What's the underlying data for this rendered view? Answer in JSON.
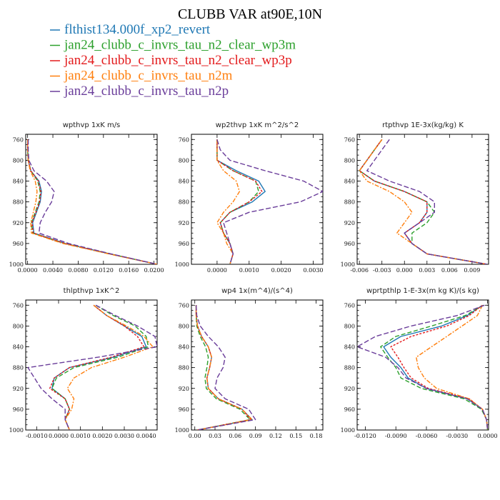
{
  "figure": {
    "title": "CLUBB VAR at90E,10N"
  },
  "legend": [
    {
      "label": "flthist134.000f_xp2_revert",
      "color": "#1f78b4",
      "dash": ""
    },
    {
      "label": "jan24_clubb_c_invrs_tau_n2_clear_wp3m",
      "color": "#2ca02c",
      "dash": "6,3"
    },
    {
      "label": "jan24_clubb_c_invrs_tau_n2_clear_wp3p",
      "color": "#e31a1c",
      "dash": "3,2"
    },
    {
      "label": "jan24_clubb_c_invrs_tau_n2m",
      "color": "#ff7f0e",
      "dash": "6,2,2,2"
    },
    {
      "label": "jan24_clubb_c_invrs_tau_n2p",
      "color": "#6a3d9a",
      "dash": "7,3"
    }
  ],
  "chart_data": [
    {
      "type": "line",
      "title": "wpthvp  1xK m/s",
      "xlim": [
        -0.0003,
        0.0205
      ],
      "ylim": [
        1000,
        750
      ],
      "xticks": [
        "0.0000",
        "0.0040",
        "0.0080",
        "0.0120",
        "0.0160",
        "0.0200"
      ],
      "xtick_values": [
        0,
        0.004,
        0.008,
        0.012,
        0.016,
        0.02
      ],
      "yticks": [
        760,
        800,
        840,
        880,
        920,
        960,
        1000
      ],
      "y": [
        760,
        780,
        800,
        820,
        840,
        860,
        880,
        900,
        920,
        940,
        960,
        980,
        1000
      ],
      "series": [
        {
          "values": [
            0.0,
            0.0,
            0.0001,
            0.0005,
            0.0018,
            0.0022,
            0.002,
            0.0014,
            0.0008,
            0.001,
            0.006,
            0.013,
            0.0205
          ]
        },
        {
          "values": [
            0.0,
            0.0,
            0.0001,
            0.0005,
            0.0016,
            0.002,
            0.0018,
            0.0012,
            0.0006,
            0.0008,
            0.0058,
            0.013,
            0.0205
          ]
        },
        {
          "values": [
            0.0,
            0.0,
            0.0001,
            0.0005,
            0.0017,
            0.0021,
            0.0019,
            0.0013,
            0.0007,
            0.0009,
            0.0059,
            0.013,
            0.0205
          ]
        },
        {
          "values": [
            0.0,
            0.0,
            0.0001,
            0.0004,
            0.0012,
            0.0015,
            0.0013,
            0.0009,
            0.0005,
            0.0006,
            0.0056,
            0.0128,
            0.0205
          ]
        },
        {
          "values": [
            0.0001,
            0.0001,
            0.0002,
            0.001,
            0.003,
            0.0042,
            0.0038,
            0.0028,
            0.002,
            0.0018,
            0.0065,
            0.0132,
            0.0205
          ]
        }
      ]
    },
    {
      "type": "line",
      "title": "wp2thvp  1xK m^2/s^2",
      "xlim": [
        -0.0008,
        0.0033
      ],
      "ylim": [
        1000,
        750
      ],
      "xticks": [
        "0.0000",
        "0.0010",
        "0.0020",
        "0.0030"
      ],
      "xtick_values": [
        0,
        0.001,
        0.002,
        0.003
      ],
      "yticks": [
        760,
        800,
        840,
        880,
        920,
        960,
        1000
      ],
      "y": [
        760,
        780,
        800,
        820,
        840,
        860,
        880,
        900,
        920,
        940,
        960,
        980,
        1000
      ],
      "series": [
        {
          "values": [
            0.0,
            0.0,
            0.0,
            0.0006,
            0.0013,
            0.0015,
            0.0011,
            0.0004,
            0.0001,
            0.0002,
            0.0004,
            0.0005,
            0.0004
          ]
        },
        {
          "values": [
            0.0,
            0.0,
            0.0,
            0.0005,
            0.0012,
            0.0013,
            0.001,
            0.0004,
            0.0001,
            0.0002,
            0.0004,
            0.0005,
            0.0004
          ]
        },
        {
          "values": [
            0.0,
            0.0,
            0.0,
            0.0005,
            0.0012,
            0.0014,
            0.001,
            0.0004,
            0.0001,
            0.0002,
            0.0004,
            0.0005,
            0.0004
          ]
        },
        {
          "values": [
            0.0,
            0.0,
            0.0,
            0.0002,
            0.0006,
            0.0007,
            0.0005,
            0.0002,
            0.0,
            0.0002,
            0.0003,
            0.0005,
            0.0004
          ]
        },
        {
          "values": [
            0.0,
            0.0001,
            0.0004,
            0.0015,
            0.0027,
            0.0033,
            0.0026,
            0.001,
            0.0002,
            0.0003,
            0.0004,
            0.0005,
            0.0004
          ]
        }
      ]
    },
    {
      "type": "line",
      "title": "rtpthvp  1E-3x(kg/kg) K",
      "xlim": [
        -0.0063,
        0.0112
      ],
      "ylim": [
        1000,
        750
      ],
      "xticks": [
        "-0.006",
        "-0.003",
        "0.000",
        "0.003",
        "0.006",
        "0.009"
      ],
      "xtick_values": [
        -0.006,
        -0.003,
        0,
        0.003,
        0.006,
        0.009
      ],
      "yticks": [
        760,
        800,
        840,
        880,
        920,
        960,
        1000
      ],
      "y": [
        760,
        780,
        800,
        820,
        840,
        860,
        880,
        900,
        920,
        940,
        960,
        980,
        1000
      ],
      "series": [
        {
          "values": [
            -0.003,
            -0.004,
            -0.005,
            -0.006,
            -0.004,
            0.0,
            0.003,
            0.003,
            0.002,
            0.0,
            0.001,
            0.003,
            0.011
          ]
        },
        {
          "values": [
            -0.003,
            -0.004,
            -0.005,
            -0.006,
            -0.004,
            0.0,
            0.003,
            0.004,
            0.003,
            0.001,
            0.001,
            0.003,
            0.011
          ]
        },
        {
          "values": [
            -0.003,
            -0.004,
            -0.005,
            -0.006,
            -0.004,
            0.0,
            0.003,
            0.003,
            0.002,
            0.0,
            0.001,
            0.003,
            0.011
          ]
        },
        {
          "values": [
            -0.003,
            -0.004,
            -0.005,
            -0.006,
            -0.005,
            -0.002,
            0.0,
            0.001,
            0.0,
            -0.001,
            0.001,
            0.003,
            0.011
          ]
        },
        {
          "values": [
            -0.002,
            -0.003,
            -0.004,
            -0.005,
            -0.002,
            0.002,
            0.004,
            0.004,
            0.002,
            0.0,
            0.001,
            0.003,
            0.011
          ]
        }
      ]
    },
    {
      "type": "line",
      "title": "thlpthvp  1xK^2",
      "xlim": [
        -0.0015,
        0.0045
      ],
      "ylim": [
        1000,
        750
      ],
      "xticks": [
        "-0.0010",
        "0.0000",
        "0.0010",
        "0.0020",
        "0.0030",
        "0.0040"
      ],
      "xtick_values": [
        -0.001,
        0,
        0.001,
        0.002,
        0.003,
        0.004
      ],
      "yticks": [
        760,
        800,
        840,
        880,
        920,
        960,
        1000
      ],
      "y": [
        760,
        780,
        800,
        820,
        840,
        860,
        880,
        900,
        920,
        940,
        960,
        980,
        1000
      ],
      "series": [
        {
          "values": [
            0.0016,
            0.0022,
            0.003,
            0.0038,
            0.004,
            0.0025,
            0.0005,
            -0.0002,
            -0.0003,
            0.0003,
            0.0005,
            0.0003,
            0.0005
          ]
        },
        {
          "values": [
            0.0017,
            0.0025,
            0.0035,
            0.004,
            0.0041,
            0.0027,
            0.0007,
            -0.0001,
            -0.0003,
            0.0003,
            0.0005,
            0.0003,
            0.0005
          ]
        },
        {
          "values": [
            0.0016,
            0.0022,
            0.003,
            0.0036,
            0.0039,
            0.0024,
            0.0005,
            -0.0002,
            -0.0004,
            0.0003,
            0.0005,
            0.0003,
            0.0005
          ]
        },
        {
          "values": [
            0.0016,
            0.0022,
            0.0031,
            0.0039,
            0.0043,
            0.003,
            0.0015,
            0.0007,
            0.0004,
            0.0007,
            0.0006,
            0.0003,
            0.0005
          ]
        },
        {
          "values": [
            0.0017,
            0.0026,
            0.0036,
            0.0044,
            0.0045,
            0.0018,
            -0.0014,
            -0.0011,
            -0.0008,
            -0.0003,
            0.0003,
            0.0003,
            0.0005
          ]
        }
      ]
    },
    {
      "type": "line",
      "title": "wp4  1x(m^4)/(s^4)",
      "xlim": [
        -0.005,
        0.19
      ],
      "ylim": [
        1000,
        750
      ],
      "xticks": [
        "0.00",
        "0.03",
        "0.06",
        "0.09",
        "0.12",
        "0.15",
        "0.18"
      ],
      "xtick_values": [
        0,
        0.03,
        0.06,
        0.09,
        0.12,
        0.15,
        0.18
      ],
      "yticks": [
        760,
        800,
        840,
        880,
        920,
        960,
        1000
      ],
      "y": [
        760,
        780,
        800,
        820,
        840,
        860,
        880,
        900,
        920,
        940,
        960,
        980,
        1000
      ],
      "series": [
        {
          "values": [
            0.002,
            0.002,
            0.004,
            0.01,
            0.02,
            0.025,
            0.022,
            0.018,
            0.02,
            0.035,
            0.07,
            0.085,
            0.004
          ]
        },
        {
          "values": [
            0.002,
            0.002,
            0.003,
            0.008,
            0.016,
            0.02,
            0.018,
            0.015,
            0.017,
            0.032,
            0.067,
            0.082,
            0.004
          ]
        },
        {
          "values": [
            0.002,
            0.002,
            0.004,
            0.01,
            0.02,
            0.025,
            0.022,
            0.018,
            0.02,
            0.035,
            0.07,
            0.083,
            0.004
          ]
        },
        {
          "values": [
            0.002,
            0.002,
            0.004,
            0.01,
            0.02,
            0.025,
            0.022,
            0.018,
            0.02,
            0.035,
            0.07,
            0.085,
            0.004
          ]
        },
        {
          "values": [
            0.002,
            0.003,
            0.008,
            0.02,
            0.035,
            0.045,
            0.042,
            0.033,
            0.03,
            0.045,
            0.08,
            0.09,
            0.004
          ]
        }
      ]
    },
    {
      "type": "line",
      "title": "wprtpthlp  1-E-3x(m kg K)/(s kg)",
      "xlim": [
        -0.0128,
        0.0001
      ],
      "ylim": [
        1000,
        750
      ],
      "xticks": [
        "-0.0120",
        "-0.0090",
        "-0.0060",
        "-0.0030",
        "0.0000"
      ],
      "xtick_values": [
        -0.012,
        -0.009,
        -0.006,
        -0.003,
        0
      ],
      "yticks": [
        760,
        800,
        840,
        880,
        920,
        960,
        1000
      ],
      "y": [
        760,
        780,
        800,
        820,
        840,
        860,
        880,
        900,
        920,
        940,
        960,
        980,
        1000
      ],
      "series": [
        {
          "values": [
            -0.0005,
            -0.002,
            -0.0045,
            -0.0085,
            -0.0102,
            -0.0095,
            -0.0085,
            -0.0078,
            -0.006,
            -0.002,
            -0.0005,
            -0.0001,
            0.0
          ]
        },
        {
          "values": [
            -0.0004,
            -0.0022,
            -0.0055,
            -0.009,
            -0.0105,
            -0.0098,
            -0.009,
            -0.0085,
            -0.0065,
            -0.0023,
            -0.0006,
            -0.0001,
            0.0
          ]
        },
        {
          "values": [
            -0.0005,
            -0.0018,
            -0.004,
            -0.0075,
            -0.0095,
            -0.0088,
            -0.0082,
            -0.0075,
            -0.0058,
            -0.0018,
            -0.0005,
            -0.0001,
            0.0
          ]
        },
        {
          "values": [
            -0.0005,
            -0.001,
            -0.0025,
            -0.004,
            -0.0055,
            -0.007,
            -0.0068,
            -0.0062,
            -0.005,
            -0.0018,
            -0.0005,
            -0.0001,
            0.0
          ]
        },
        {
          "values": [
            -0.0003,
            -0.003,
            -0.0075,
            -0.011,
            -0.0128,
            -0.01,
            -0.0088,
            -0.008,
            -0.006,
            -0.002,
            -0.0005,
            -0.0001,
            0.0
          ]
        }
      ]
    }
  ]
}
